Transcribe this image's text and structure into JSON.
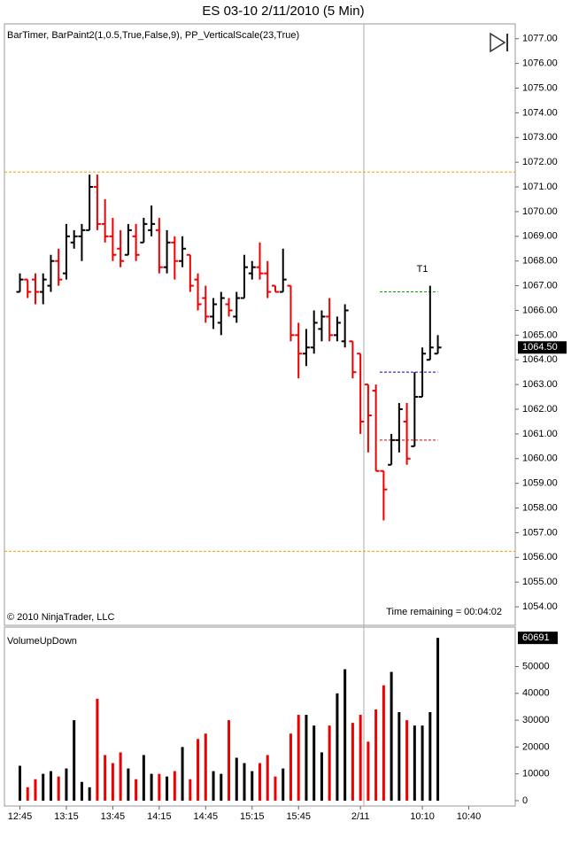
{
  "chart_data": [
    {
      "type": "ohlc",
      "title": "ES 03-10  2/11/2010 (5 Min)",
      "subtitle": "BarTimer, BarPaint2(1,0.5,True,False,9), PP_VerticalScale(23,True)",
      "footer_left": "© 2010 NinjaTrader, LLC",
      "footer_right": "Time remaining = 00:04:02",
      "up_color": "#000000",
      "down_color": "#ee0000",
      "open": [
        1066.75,
        1067.25,
        1067.25,
        1066.75,
        1067.0,
        1068.0,
        1067.5,
        1068.75,
        1069.0,
        1069.25,
        1071.0,
        1069.5,
        1069.0,
        1068.5,
        1068.25,
        1069.0,
        1068.75,
        1069.25,
        1069.25,
        1067.75,
        1068.75,
        1068.0,
        1068.25,
        1067.25,
        1066.5,
        1065.75,
        1065.5,
        1066.25,
        1065.75,
        1066.5,
        1067.5,
        1067.75,
        1067.5,
        1067.0,
        1066.75,
        1067.0,
        1065.0,
        1064.25,
        1064.5,
        1065.25,
        1065.75,
        1065.0,
        1064.75,
        1064.75,
        1064.25,
        1063.0,
        1062.75,
        1059.5,
        1059.75,
        1060.75,
        1061.5,
        1060.5,
        1062.5,
        1064.0,
        1064.25
      ],
      "high": [
        1067.5,
        1067.25,
        1067.5,
        1067.5,
        1068.25,
        1068.5,
        1069.5,
        1069.25,
        1069.5,
        1071.5,
        1071.5,
        1070.5,
        1069.75,
        1069.25,
        1069.5,
        1069.5,
        1069.75,
        1070.25,
        1069.75,
        1069.25,
        1069.0,
        1069.0,
        1068.25,
        1067.5,
        1067.0,
        1066.5,
        1066.75,
        1066.5,
        1066.75,
        1068.25,
        1068.0,
        1068.75,
        1068.0,
        1067.0,
        1068.5,
        1067.0,
        1065.5,
        1065.25,
        1066.0,
        1066.0,
        1066.5,
        1065.75,
        1066.25,
        1064.75,
        1064.25,
        1063.0,
        1063.0,
        1059.5,
        1061.0,
        1062.25,
        1062.25,
        1063.5,
        1064.5,
        1067.0,
        1065.0
      ],
      "low": [
        1066.75,
        1066.5,
        1066.25,
        1066.25,
        1066.75,
        1067.0,
        1067.25,
        1068.5,
        1068.0,
        1069.25,
        1069.25,
        1068.75,
        1068.0,
        1067.75,
        1068.25,
        1068.0,
        1068.75,
        1069.0,
        1067.5,
        1067.5,
        1067.25,
        1067.75,
        1066.75,
        1066.0,
        1065.5,
        1065.25,
        1065.0,
        1065.75,
        1065.5,
        1066.5,
        1067.25,
        1067.25,
        1066.5,
        1066.75,
        1066.75,
        1064.75,
        1063.25,
        1063.75,
        1064.25,
        1064.75,
        1064.75,
        1064.75,
        1064.5,
        1063.25,
        1061.0,
        1060.25,
        1059.5,
        1057.5,
        1059.75,
        1060.25,
        1059.75,
        1060.5,
        1062.5,
        1064.0,
        1064.25
      ],
      "close": [
        1067.25,
        1066.75,
        1066.75,
        1067.25,
        1068.0,
        1067.25,
        1069.0,
        1069.0,
        1069.25,
        1071.0,
        1069.5,
        1069.0,
        1068.25,
        1068.0,
        1069.25,
        1068.25,
        1069.5,
        1069.5,
        1067.75,
        1068.75,
        1068.0,
        1068.5,
        1067.0,
        1066.25,
        1065.75,
        1066.25,
        1066.5,
        1066.0,
        1066.5,
        1067.75,
        1067.75,
        1067.5,
        1066.75,
        1066.75,
        1067.25,
        1065.0,
        1064.25,
        1064.5,
        1065.5,
        1065.75,
        1065.0,
        1065.5,
        1066.0,
        1063.5,
        1061.5,
        1061.75,
        1059.5,
        1058.75,
        1060.75,
        1062.0,
        1060.0,
        1062.5,
        1064.25,
        1064.5,
        1064.5
      ],
      "last_price": {
        "value": 1064.5,
        "label": "1064.50"
      },
      "ylim": [
        1053.25,
        1077.6
      ],
      "yticks": [
        {
          "value": 1054,
          "label": "1054.00"
        },
        {
          "value": 1055,
          "label": "1055.00"
        },
        {
          "value": 1056,
          "label": "1056.00"
        },
        {
          "value": 1057,
          "label": "1057.00"
        },
        {
          "value": 1058,
          "label": "1058.00"
        },
        {
          "value": 1059,
          "label": "1059.00"
        },
        {
          "value": 1060,
          "label": "1060.00"
        },
        {
          "value": 1061,
          "label": "1061.00"
        },
        {
          "value": 1062,
          "label": "1062.00"
        },
        {
          "value": 1063,
          "label": "1063.00"
        },
        {
          "value": 1064,
          "label": "1064.00"
        },
        {
          "value": 1065,
          "label": "1065.00"
        },
        {
          "value": 1066,
          "label": "1066.00"
        },
        {
          "value": 1067,
          "label": "1067.00"
        },
        {
          "value": 1068,
          "label": "1068.00"
        },
        {
          "value": 1069,
          "label": "1069.00"
        },
        {
          "value": 1070,
          "label": "1070.00"
        },
        {
          "value": 1071,
          "label": "1071.00"
        },
        {
          "value": 1072,
          "label": "1072.00"
        },
        {
          "value": 1073,
          "label": "1073.00"
        },
        {
          "value": 1074,
          "label": "1074.00"
        },
        {
          "value": 1075,
          "label": "1075.00"
        },
        {
          "value": 1076,
          "label": "1076.00"
        },
        {
          "value": 1077,
          "label": "1077.00"
        }
      ],
      "xlim": [
        -2,
        64
      ],
      "xticks": [
        {
          "value": 0,
          "label": "12:45"
        },
        {
          "value": 6,
          "label": "13:15"
        },
        {
          "value": 12,
          "label": "13:45"
        },
        {
          "value": 18,
          "label": "14:15"
        },
        {
          "value": 24,
          "label": "14:45"
        },
        {
          "value": 30,
          "label": "15:15"
        },
        {
          "value": 36,
          "label": "15:45"
        },
        {
          "value": 44,
          "label": "2/11"
        },
        {
          "value": 52,
          "label": "10:10"
        },
        {
          "value": 58,
          "label": "10:40"
        }
      ],
      "hlines": [
        {
          "value": 1071.6,
          "color": "#f0a000"
        },
        {
          "value": 1056.25,
          "color": "#f0a000"
        },
        {
          "value": 1066.75,
          "color": "#00aa00"
        },
        {
          "value": 1063.5,
          "color": "#0000cc"
        },
        {
          "value": 1060.75,
          "color": "#dd0000"
        }
      ],
      "annotations": [
        {
          "text": "T1",
          "x": 52,
          "y": 1067.3
        }
      ]
    },
    {
      "type": "bar",
      "title": "VolumeUpDown",
      "values": [
        13000,
        5000,
        8000,
        10000,
        11000,
        9000,
        12000,
        30000,
        7000,
        5000,
        38000,
        17000,
        14000,
        18000,
        12000,
        8000,
        17000,
        10000,
        10000,
        9000,
        11000,
        20000,
        8000,
        23000,
        25000,
        11000,
        10000,
        30000,
        16000,
        14000,
        11000,
        14000,
        17000,
        9000,
        12000,
        25000,
        32000,
        32000,
        28000,
        18000,
        28000,
        40000,
        49000,
        29000,
        32000,
        22000,
        34000,
        43000,
        48000,
        33000,
        30000,
        28000,
        28000,
        33000,
        60691
      ],
      "ylim": [
        -2000,
        64700
      ],
      "yticks": [
        0,
        10000,
        20000,
        30000,
        40000,
        50000
      ]
    }
  ]
}
